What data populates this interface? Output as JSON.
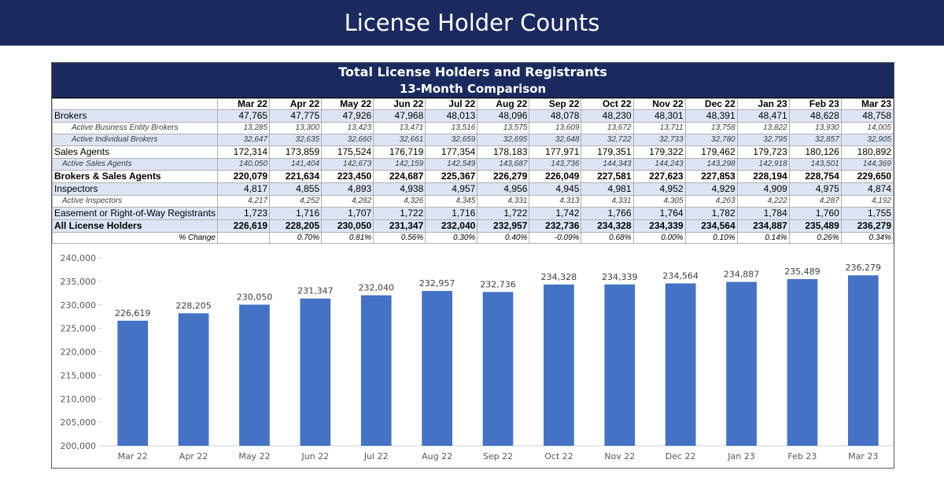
{
  "header": {
    "title": "License Holder Counts"
  },
  "table": {
    "title": "Total License Holders and Registrants",
    "subtitle": "13-Month Comparison",
    "months": [
      "Mar 22",
      "Apr 22",
      "May 22",
      "Jun 22",
      "Jul 22",
      "Aug 22",
      "Sep 22",
      "Oct 22",
      "Nov 22",
      "Dec 22",
      "Jan 23",
      "Feb 23",
      "Mar 23"
    ],
    "rows": [
      {
        "label": "Brokers",
        "style": "main",
        "values": [
          "47,765",
          "47,775",
          "47,926",
          "47,968",
          "48,013",
          "48,096",
          "48,078",
          "48,230",
          "48,301",
          "48,391",
          "48,471",
          "48,628",
          "48,758"
        ]
      },
      {
        "label": "Active Business Entity Brokers",
        "style": "sub-ind1",
        "values": [
          "13,285",
          "13,300",
          "13,423",
          "13,471",
          "13,516",
          "13,575",
          "13,609",
          "13,672",
          "13,711",
          "13,758",
          "13,822",
          "13,930",
          "14,005"
        ]
      },
      {
        "label": "Active Individual Brokers",
        "style": "sub-ind1-blue",
        "values": [
          "32,647",
          "32,635",
          "32,660",
          "32,661",
          "32,659",
          "32,695",
          "32,648",
          "32,722",
          "32,733",
          "32,780",
          "32,795",
          "32,857",
          "32,905"
        ]
      },
      {
        "label": "Sales Agents",
        "style": "main-white",
        "values": [
          "172,314",
          "173,859",
          "175,524",
          "176,719",
          "177,354",
          "178,183",
          "177,971",
          "179,351",
          "179,322",
          "179,462",
          "179,723",
          "180,126",
          "180,892"
        ]
      },
      {
        "label": "Active Sales Agents",
        "style": "sub-ind2-blue",
        "values": [
          "140,050",
          "141,404",
          "142,673",
          "142,159",
          "142,549",
          "143,687",
          "143,736",
          "144,343",
          "144,243",
          "143,298",
          "142,918",
          "143,501",
          "144,369"
        ]
      },
      {
        "label": "Brokers & Sales Agents",
        "style": "total-white",
        "values": [
          "220,079",
          "221,634",
          "223,450",
          "224,687",
          "225,367",
          "226,279",
          "226,049",
          "227,581",
          "227,623",
          "227,853",
          "228,194",
          "228,754",
          "229,650"
        ]
      },
      {
        "label": "Inspectors",
        "style": "main",
        "values": [
          "4,817",
          "4,855",
          "4,893",
          "4,938",
          "4,957",
          "4,956",
          "4,945",
          "4,981",
          "4,952",
          "4,929",
          "4,909",
          "4,975",
          "4,874"
        ]
      },
      {
        "label": "Active Inspectors",
        "style": "sub-ind2",
        "values": [
          "4,217",
          "4,252",
          "4,282",
          "4,326",
          "4,345",
          "4,331",
          "4,313",
          "4,331",
          "4,305",
          "4,263",
          "4,222",
          "4,287",
          "4,192"
        ]
      },
      {
        "label": "Easement or Right-of-Way Registrants",
        "style": "main",
        "values": [
          "1,723",
          "1,716",
          "1,707",
          "1,722",
          "1,716",
          "1,722",
          "1,742",
          "1,766",
          "1,764",
          "1,782",
          "1,784",
          "1,760",
          "1,755"
        ]
      },
      {
        "label": "All License Holders",
        "style": "total-blue",
        "values": [
          "226,619",
          "228,205",
          "230,050",
          "231,347",
          "232,040",
          "232,957",
          "232,736",
          "234,328",
          "234,339",
          "234,564",
          "234,887",
          "235,489",
          "236,279"
        ]
      },
      {
        "label": "% Change",
        "style": "pct",
        "values": [
          "",
          "0.70%",
          "0.81%",
          "0.56%",
          "0.30%",
          "0.40%",
          "-0.09%",
          "0.68%",
          "0.00%",
          "0.10%",
          "0.14%",
          "0.26%",
          "0.34%"
        ]
      }
    ]
  },
  "colors": {
    "navy": "#1b2a5e",
    "bar": "#4472c4",
    "row_blue": "#dce5f4"
  },
  "chart_data": {
    "type": "bar",
    "title": "",
    "xlabel": "",
    "ylabel": "",
    "categories": [
      "Mar 22",
      "Apr 22",
      "May 22",
      "Jun 22",
      "Jul 22",
      "Aug 22",
      "Sep 22",
      "Oct 22",
      "Nov 22",
      "Dec 22",
      "Jan 23",
      "Feb 23",
      "Mar 23"
    ],
    "values": [
      226619,
      228205,
      230050,
      231347,
      232040,
      232957,
      232736,
      234328,
      234339,
      234564,
      234887,
      235489,
      236279
    ],
    "data_labels": [
      "226,619",
      "228,205",
      "230,050",
      "231,347",
      "232,040",
      "232,957",
      "232,736",
      "234,328",
      "234,339",
      "234,564",
      "234,887",
      "235,489",
      "236,279"
    ],
    "ylim": [
      200000,
      240000
    ],
    "yticks": [
      200000,
      205000,
      210000,
      215000,
      220000,
      225000,
      230000,
      235000,
      240000
    ],
    "ytick_labels": [
      "200,000",
      "205,000",
      "210,000",
      "215,000",
      "220,000",
      "225,000",
      "230,000",
      "235,000",
      "240,000"
    ],
    "grid": false,
    "legend": "none"
  }
}
